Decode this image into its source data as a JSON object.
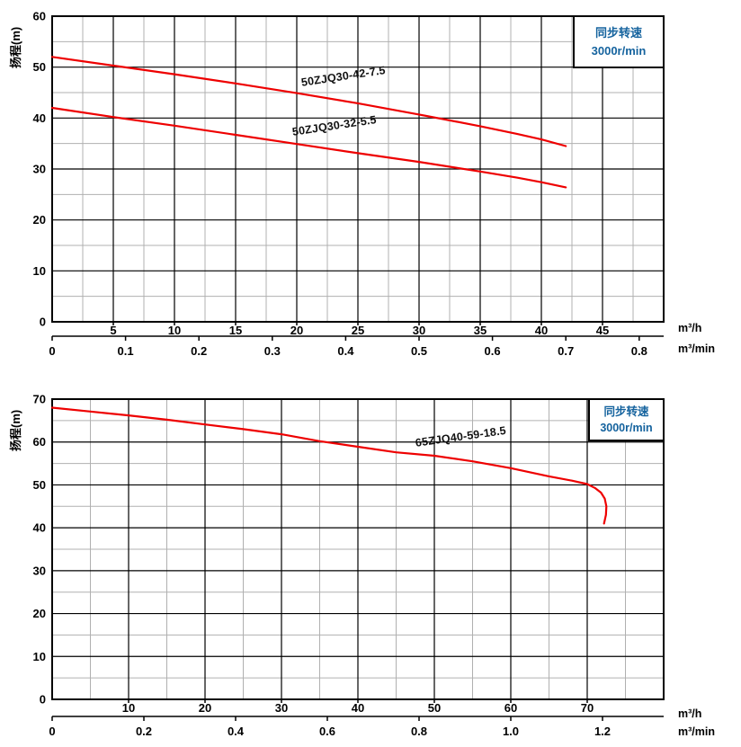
{
  "colors": {
    "curve_red": "#ee0000",
    "accent_blue": "#15639e",
    "grid_major": "#000000",
    "grid_minor": "#b0b0b0",
    "text": "#000000"
  },
  "chart_data": [
    {
      "type": "line",
      "title": "",
      "ylabel": "扬程(m)",
      "x_unit_primary": "m³/h",
      "x_unit_secondary": "m³/min",
      "annotation": {
        "line1": "同步转速",
        "line2": "3000r/min"
      },
      "x_axis": {
        "range_m3h": [
          0,
          50
        ],
        "major_step": 5,
        "minor_step": 2.5,
        "tick_labels": [
          5,
          10,
          15,
          20,
          25,
          30,
          35,
          40,
          45
        ]
      },
      "x_axis_secondary": {
        "m3h_per_unit": 60,
        "values": [
          0,
          0.1,
          0.2,
          0.3,
          0.4,
          0.5,
          0.6,
          0.7,
          0.8
        ],
        "labels": [
          "0",
          "0.1",
          "0.2",
          "0.3",
          "0.4",
          "0.5",
          "0.6",
          "0.7",
          "0.8"
        ]
      },
      "y_axis": {
        "range": [
          0,
          60
        ],
        "major_step": 10,
        "minor_step": 5,
        "tick_labels": [
          0,
          10,
          20,
          30,
          40,
          50,
          60
        ]
      },
      "grid": true,
      "series": [
        {
          "name": "50ZJQ30-42-7.5",
          "points": [
            [
              0,
              52
            ],
            [
              5,
              50.3
            ],
            [
              10,
              48.6
            ],
            [
              15,
              46.8
            ],
            [
              20,
              44.9
            ],
            [
              25,
              42.9
            ],
            [
              30,
              40.7
            ],
            [
              35,
              38.4
            ],
            [
              38,
              36.9
            ],
            [
              40,
              35.8
            ],
            [
              42,
              34.5
            ]
          ]
        },
        {
          "name": "50ZJQ30-32-5.5",
          "points": [
            [
              0,
              42
            ],
            [
              5,
              40.2
            ],
            [
              10,
              38.5
            ],
            [
              15,
              36.7
            ],
            [
              20,
              34.9
            ],
            [
              25,
              33.1
            ],
            [
              30,
              31.4
            ],
            [
              35,
              29.5
            ],
            [
              38,
              28.3
            ],
            [
              40,
              27.4
            ],
            [
              42,
              26.4
            ]
          ]
        }
      ]
    },
    {
      "type": "line",
      "title": "",
      "ylabel": "扬程(m)",
      "x_unit_primary": "m³/h",
      "x_unit_secondary": "m³/min",
      "annotation": {
        "line1": "同步转速",
        "line2": "3000r/min"
      },
      "x_axis": {
        "range_m3h": [
          0,
          80
        ],
        "major_step": 10,
        "minor_step": 5,
        "tick_labels": [
          10,
          20,
          30,
          40,
          50,
          60,
          70
        ]
      },
      "x_axis_secondary": {
        "m3h_per_unit": 60,
        "values": [
          0,
          0.2,
          0.4,
          0.6,
          0.8,
          1.0,
          1.2
        ],
        "labels": [
          "0",
          "0.2",
          "0.4",
          "0.6",
          "0.8",
          "1.0",
          "1.2"
        ]
      },
      "y_axis": {
        "range": [
          0,
          70
        ],
        "major_step": 10,
        "minor_step": 5,
        "tick_labels": [
          0,
          10,
          20,
          30,
          40,
          50,
          60,
          70
        ]
      },
      "grid": true,
      "series": [
        {
          "name": "65ZJQ40-59-18.5",
          "points": [
            [
              0,
              68
            ],
            [
              5,
              67.1
            ],
            [
              10,
              66.2
            ],
            [
              15,
              65.2
            ],
            [
              20,
              64.1
            ],
            [
              25,
              63
            ],
            [
              30,
              61.8
            ],
            [
              35,
              60.2
            ],
            [
              40,
              58.9
            ],
            [
              45,
              57.6
            ],
            [
              50,
              56.8
            ],
            [
              55,
              55.5
            ],
            [
              60,
              53.9
            ],
            [
              65,
              52
            ],
            [
              68,
              51
            ],
            [
              70,
              50.2
            ],
            [
              71,
              49.3
            ],
            [
              71.8,
              48.2
            ],
            [
              72.3,
              46.8
            ],
            [
              72.5,
              45
            ],
            [
              72.45,
              43
            ],
            [
              72.2,
              41
            ]
          ]
        }
      ]
    }
  ]
}
